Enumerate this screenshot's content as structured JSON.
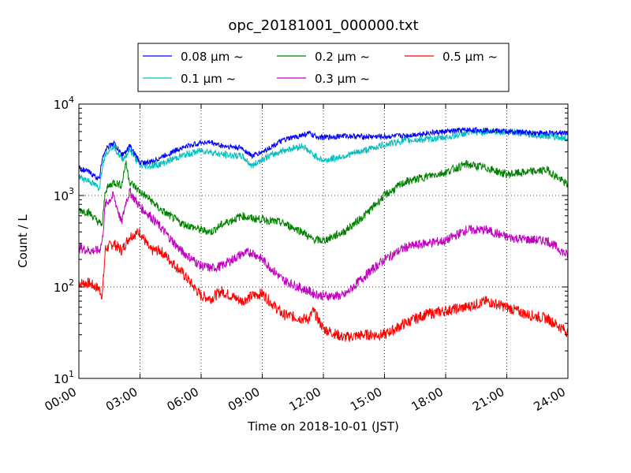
{
  "chart_data": {
    "type": "line",
    "title": "opc_20181001_000000.txt",
    "xlabel": "Time on 2018-10-01 (JST)",
    "ylabel": "Count / L",
    "yscale": "log",
    "ylim": [
      10,
      10000
    ],
    "xlim": [
      "00:00",
      "24:00"
    ],
    "grid": true,
    "legend_position": "top-center, outside plot, 3 columns",
    "x_ticks": [
      "00:00",
      "03:00",
      "06:00",
      "09:00",
      "12:00",
      "15:00",
      "18:00",
      "21:00",
      "24:00"
    ],
    "y_ticks": [
      {
        "value": 10,
        "base": "10",
        "exp": "1"
      },
      {
        "value": 100,
        "base": "10",
        "exp": "2"
      },
      {
        "value": 1000,
        "base": "10",
        "exp": "3"
      },
      {
        "value": 10000,
        "base": "10",
        "exp": "4"
      }
    ],
    "x_hours": [
      0,
      0.5,
      1,
      1.15,
      1.3,
      1.7,
      2.1,
      2.3,
      2.5,
      3,
      3.5,
      4,
      5,
      6,
      6.5,
      7,
      8,
      8.5,
      9,
      10,
      11,
      11.3,
      11.5,
      12,
      13,
      14,
      15,
      16,
      17,
      18,
      19,
      20,
      21,
      22,
      23,
      24
    ],
    "series": [
      {
        "name": "0.08 μm ~",
        "color": "#0000ff",
        "values": [
          2000,
          1800,
          1500,
          2600,
          3200,
          3800,
          2800,
          3000,
          3500,
          2300,
          2300,
          2600,
          3300,
          3800,
          3800,
          3500,
          3300,
          2700,
          3000,
          4000,
          4600,
          4800,
          4500,
          4300,
          4500,
          4400,
          4400,
          4500,
          4800,
          5000,
          5200,
          5200,
          5000,
          4900,
          4800,
          4900
        ]
      },
      {
        "name": "0.1 μm ~",
        "color": "#00bfbf",
        "values": [
          1600,
          1450,
          1200,
          2100,
          2900,
          3500,
          2500,
          2700,
          3200,
          2100,
          2100,
          2200,
          2700,
          3100,
          3000,
          2800,
          2700,
          2100,
          2500,
          3100,
          3500,
          3000,
          2800,
          2400,
          2700,
          3100,
          3600,
          4000,
          4100,
          4300,
          4800,
          5000,
          5000,
          4700,
          4500,
          4200
        ]
      },
      {
        "name": "0.2 μm ~",
        "color": "#008000",
        "values": [
          700,
          650,
          500,
          480,
          1150,
          1400,
          1300,
          2300,
          1400,
          1100,
          900,
          700,
          500,
          420,
          400,
          480,
          600,
          560,
          550,
          500,
          400,
          350,
          330,
          320,
          400,
          600,
          1000,
          1400,
          1600,
          1800,
          2200,
          2000,
          1700,
          1800,
          1900,
          1300
        ]
      },
      {
        "name": "0.3 μm ~",
        "color": "#bf00bf",
        "values": [
          270,
          250,
          250,
          320,
          800,
          1000,
          500,
          850,
          1100,
          750,
          600,
          450,
          250,
          170,
          160,
          170,
          230,
          240,
          200,
          120,
          95,
          90,
          85,
          80,
          80,
          130,
          200,
          270,
          300,
          320,
          420,
          420,
          350,
          330,
          320,
          220
        ]
      },
      {
        "name": "0.5 μm ~",
        "color": "#ff0000",
        "values": [
          110,
          110,
          95,
          80,
          260,
          300,
          250,
          300,
          360,
          400,
          250,
          250,
          150,
          80,
          75,
          90,
          70,
          80,
          85,
          50,
          45,
          45,
          55,
          35,
          28,
          30,
          30,
          40,
          50,
          55,
          60,
          70,
          60,
          50,
          45,
          32
        ]
      }
    ]
  }
}
